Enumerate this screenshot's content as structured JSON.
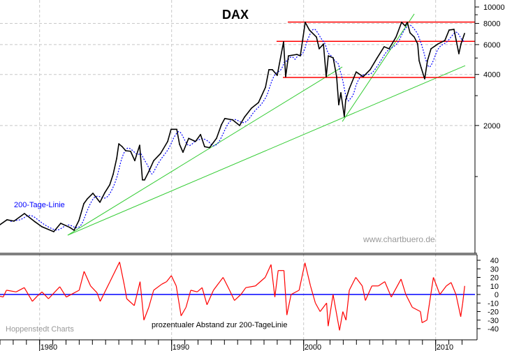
{
  "chart_data": [
    {
      "type": "line",
      "title": "DAX",
      "y_scale": "log",
      "ylim": [
        356,
        10000
      ],
      "xlim": [
        1977.0,
        2013.0
      ],
      "grid": true,
      "y_ticks": [
        {
          "value": 10000,
          "label": "10000"
        },
        {
          "value": 8000,
          "label": "8000"
        },
        {
          "value": 6000,
          "label": "6000"
        },
        {
          "value": 4000,
          "label": "4000"
        },
        {
          "value": 2000,
          "label": "2000"
        }
      ],
      "y_minor_ticks": [
        9000,
        7000,
        5000,
        3000,
        1000
      ],
      "y_axis_side": "right",
      "annotation_ma": "200-Tage-Linie",
      "watermark": "www.chartbuero.de",
      "colors": {
        "price": "#000000",
        "ma": "#0000ff",
        "trend": "#33cc33",
        "resistance": "#ff0000",
        "grid": "#c8c8c8"
      },
      "series": [
        {
          "points": [
            [
              1977.0,
              520
            ],
            [
              1977.53,
              556
            ],
            [
              1978.06,
              546
            ],
            [
              1978.85,
              605
            ],
            [
              1979.65,
              541
            ],
            [
              1980.17,
              506
            ],
            [
              1981.07,
              473
            ],
            [
              1981.6,
              530
            ],
            [
              1982.29,
              501
            ],
            [
              1982.61,
              482
            ],
            [
              1982.98,
              551
            ],
            [
              1983.35,
              692
            ],
            [
              1983.61,
              738
            ],
            [
              1984.04,
              797
            ],
            [
              1984.57,
              705
            ],
            [
              1984.94,
              804
            ],
            [
              1985.31,
              893
            ],
            [
              1985.57,
              1030
            ],
            [
              1985.84,
              1280
            ],
            [
              1986.0,
              1560
            ],
            [
              1986.26,
              1500
            ],
            [
              1986.52,
              1420
            ],
            [
              1986.89,
              1410
            ],
            [
              1987.21,
              1240
            ],
            [
              1987.58,
              1530
            ],
            [
              1987.79,
              955
            ],
            [
              1987.95,
              955
            ],
            [
              1988.27,
              1070
            ],
            [
              1988.64,
              1240
            ],
            [
              1989.17,
              1370
            ],
            [
              1989.7,
              1610
            ],
            [
              1989.96,
              1900
            ],
            [
              1990.39,
              1900
            ],
            [
              1990.6,
              1550
            ],
            [
              1990.86,
              1390
            ],
            [
              1991.29,
              1680
            ],
            [
              1991.81,
              1610
            ],
            [
              1992.19,
              1770
            ],
            [
              1992.5,
              1500
            ],
            [
              1992.87,
              1480
            ],
            [
              1993.4,
              1680
            ],
            [
              1993.77,
              2020
            ],
            [
              1994.03,
              2200
            ],
            [
              1994.62,
              2160
            ],
            [
              1995.15,
              2000
            ],
            [
              1995.52,
              2240
            ],
            [
              1996.05,
              2530
            ],
            [
              1996.58,
              2730
            ],
            [
              1997.11,
              3360
            ],
            [
              1997.37,
              4270
            ],
            [
              1997.63,
              4270
            ],
            [
              1998.0,
              3950
            ],
            [
              1998.48,
              6230
            ],
            [
              1998.64,
              3880
            ],
            [
              1998.85,
              5150
            ],
            [
              1999.49,
              5250
            ],
            [
              1999.75,
              5150
            ],
            [
              2000.12,
              8120
            ],
            [
              2000.44,
              7310
            ],
            [
              2000.97,
              6650
            ],
            [
              2001.18,
              5670
            ],
            [
              2001.5,
              6050
            ],
            [
              2001.71,
              3880
            ],
            [
              2001.87,
              5150
            ],
            [
              2002.24,
              5010
            ],
            [
              2002.5,
              3880
            ],
            [
              2002.66,
              2650
            ],
            [
              2002.82,
              3120
            ],
            [
              2003.08,
              2260
            ],
            [
              2003.19,
              2840
            ],
            [
              2003.46,
              3300
            ],
            [
              2003.98,
              4140
            ],
            [
              2004.51,
              3880
            ],
            [
              2005.04,
              4270
            ],
            [
              2005.57,
              5010
            ],
            [
              2006.1,
              5830
            ],
            [
              2006.47,
              5670
            ],
            [
              2007.0,
              6650
            ],
            [
              2007.42,
              8120
            ],
            [
              2007.69,
              7740
            ],
            [
              2007.85,
              8120
            ],
            [
              2008.06,
              7040
            ],
            [
              2008.38,
              6650
            ],
            [
              2008.64,
              6050
            ],
            [
              2008.75,
              4820
            ],
            [
              2008.9,
              4390
            ],
            [
              2009.17,
              3770
            ],
            [
              2009.38,
              4820
            ],
            [
              2009.65,
              5670
            ],
            [
              2010.17,
              6050
            ],
            [
              2010.7,
              6350
            ],
            [
              2011.02,
              7310
            ],
            [
              2011.39,
              7380
            ],
            [
              2011.55,
              6400
            ],
            [
              2011.76,
              5300
            ],
            [
              2011.92,
              6050
            ],
            [
              2012.19,
              6980
            ]
          ]
        }
      ],
      "trendlines": [
        {
          "from": [
            1982.13,
            451
          ],
          "to": [
            2002.93,
            4430
          ]
        },
        {
          "from": [
            1982.13,
            451
          ],
          "to": [
            2012.24,
            4510
          ]
        },
        {
          "from": [
            2002.93,
            2110
          ],
          "to": [
            2008.38,
            9100
          ]
        }
      ],
      "horizontal_lines": [
        {
          "value": 8150,
          "from_year": 1998.8
        },
        {
          "value": 6270,
          "from_year": 1997.95
        },
        {
          "value": 3840,
          "from_year": 1998.43
        }
      ]
    },
    {
      "type": "line",
      "title": "prozentualer Abstand zur 200-TageLinie",
      "ylim": [
        -45,
        45
      ],
      "y_ticks": [
        40,
        30,
        20,
        10,
        0,
        -10,
        -20,
        -30,
        -40
      ],
      "y_tick_labels": [
        "40",
        "30",
        "20",
        "10",
        "0",
        "-10",
        "-20",
        "-30",
        "-40"
      ],
      "zero_line": 0,
      "source": "Hoppenstedt Charts",
      "colors": {
        "line": "#ff0000",
        "zero": "#0000ff"
      },
      "x_ticks": [
        {
          "value": 1980,
          "label": "1980"
        },
        {
          "value": 1990,
          "label": "1990"
        },
        {
          "value": 2000,
          "label": "2000"
        },
        {
          "value": 2010,
          "label": "2010"
        }
      ],
      "series": [
        {
          "points": [
            [
              1977.0,
              -2
            ],
            [
              1977.24,
              -3
            ],
            [
              1977.49,
              5
            ],
            [
              1978.22,
              3
            ],
            [
              1978.84,
              8
            ],
            [
              1979.45,
              -8
            ],
            [
              1979.82,
              -2
            ],
            [
              1980.18,
              3
            ],
            [
              1980.67,
              -5
            ],
            [
              1981.53,
              9
            ],
            [
              1982.02,
              -3
            ],
            [
              1983.0,
              5
            ],
            [
              1983.37,
              27
            ],
            [
              1983.86,
              10
            ],
            [
              1984.35,
              2
            ],
            [
              1984.59,
              -8
            ],
            [
              1985.33,
              15
            ],
            [
              1986.06,
              38
            ],
            [
              1986.43,
              10
            ],
            [
              1986.6,
              -5
            ],
            [
              1987.17,
              -13
            ],
            [
              1987.61,
              15
            ],
            [
              1987.9,
              -30
            ],
            [
              1988.27,
              -15
            ],
            [
              1988.64,
              5
            ],
            [
              1989.25,
              12
            ],
            [
              1989.62,
              15
            ],
            [
              1989.98,
              22
            ],
            [
              1990.35,
              10
            ],
            [
              1990.72,
              -25
            ],
            [
              1991.09,
              -15
            ],
            [
              1991.45,
              5
            ],
            [
              1991.94,
              3
            ],
            [
              1992.31,
              8
            ],
            [
              1992.68,
              -12
            ],
            [
              1993.17,
              5
            ],
            [
              1993.9,
              20
            ],
            [
              1994.39,
              5
            ],
            [
              1994.76,
              -7
            ],
            [
              1995.25,
              0
            ],
            [
              1995.62,
              8
            ],
            [
              1996.35,
              10
            ],
            [
              1997.09,
              20
            ],
            [
              1997.53,
              35
            ],
            [
              1997.82,
              -3
            ],
            [
              1998.07,
              28
            ],
            [
              1998.51,
              28
            ],
            [
              1998.73,
              -24
            ],
            [
              1999.05,
              0
            ],
            [
              1999.66,
              5
            ],
            [
              2000.1,
              37
            ],
            [
              2000.52,
              10
            ],
            [
              2000.89,
              -10
            ],
            [
              2001.25,
              -20
            ],
            [
              2001.74,
              -10
            ],
            [
              2001.86,
              -37
            ],
            [
              2002.23,
              0
            ],
            [
              2002.72,
              -42
            ],
            [
              2002.97,
              -20
            ],
            [
              2003.21,
              -30
            ],
            [
              2003.46,
              5
            ],
            [
              2003.95,
              20
            ],
            [
              2004.44,
              10
            ],
            [
              2004.68,
              -7
            ],
            [
              2005.17,
              10
            ],
            [
              2005.66,
              10
            ],
            [
              2006.15,
              15
            ],
            [
              2006.64,
              -3
            ],
            [
              2007.38,
              18
            ],
            [
              2007.74,
              0
            ],
            [
              2008.23,
              -15
            ],
            [
              2008.85,
              -20
            ],
            [
              2008.97,
              -33
            ],
            [
              2009.34,
              -30
            ],
            [
              2009.83,
              20
            ],
            [
              2010.32,
              0
            ],
            [
              2010.81,
              10
            ],
            [
              2011.17,
              14
            ],
            [
              2011.54,
              0
            ],
            [
              2011.9,
              -26
            ],
            [
              2012.05,
              -10
            ],
            [
              2012.2,
              10
            ]
          ]
        }
      ]
    }
  ]
}
